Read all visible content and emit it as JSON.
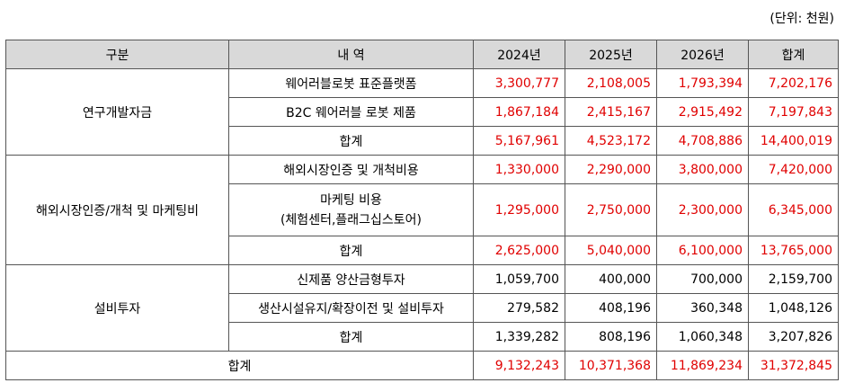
{
  "unit_note": "(단위: 천원)",
  "headers": [
    "구분",
    "내 역",
    "2024년",
    "2025년",
    "2026년",
    "합계"
  ],
  "sections": [
    {
      "category": "연구개발자금",
      "rows": [
        {
          "item": [
            "웨어러블로봇 표준플랫폼"
          ],
          "values": [
            "3,300,777",
            "2,108,005",
            "1,793,394",
            "7,202,176"
          ]
        },
        {
          "item": [
            "B2C 웨어러블 로봇 제품"
          ],
          "values": [
            "1,867,184",
            "2,415,167",
            "2,915,492",
            "7,197,843"
          ]
        },
        {
          "item": [
            "합계"
          ],
          "values": [
            "5,167,961",
            "4,523,172",
            "4,708,886",
            "14,400,019"
          ]
        }
      ]
    },
    {
      "category": "해외시장인증/개척 및 마케팅비",
      "rows": [
        {
          "item": [
            "해외시장인증 및 개척비용"
          ],
          "values": [
            "1,330,000",
            "2,290,000",
            "3,800,000",
            "7,420,000"
          ]
        },
        {
          "item": [
            "마케팅 비용",
            "(체험센터,플래그십스토어)"
          ],
          "values": [
            "1,295,000",
            "2,750,000",
            "2,300,000",
            "6,345,000"
          ]
        },
        {
          "item": [
            "합계"
          ],
          "values": [
            "2,625,000",
            "5,040,000",
            "6,100,000",
            "13,765,000"
          ]
        }
      ]
    },
    {
      "category": "설비투자",
      "rows": [
        {
          "item": [
            "신제품 양산금형투자"
          ],
          "values": [
            "1,059,700",
            "400,000",
            "700,000",
            "2,159,700"
          ]
        },
        {
          "item": [
            "생산시설유지/확장이전 및 설비투자"
          ],
          "values": [
            "279,582",
            "408,196",
            "360,348",
            "1,048,126"
          ]
        },
        {
          "item": [
            "합계"
          ],
          "values": [
            "1,339,282",
            "808,196",
            "1,060,348",
            "3,207,826"
          ]
        }
      ]
    }
  ],
  "grand_total": {
    "label": "합계",
    "values": [
      "9,132,243",
      "10,371,368",
      "11,869,234",
      "31,372,845"
    ]
  },
  "colors": {
    "highlight_text": "#e00000",
    "header_bg": "#d9d9d9",
    "border": "#555555"
  }
}
